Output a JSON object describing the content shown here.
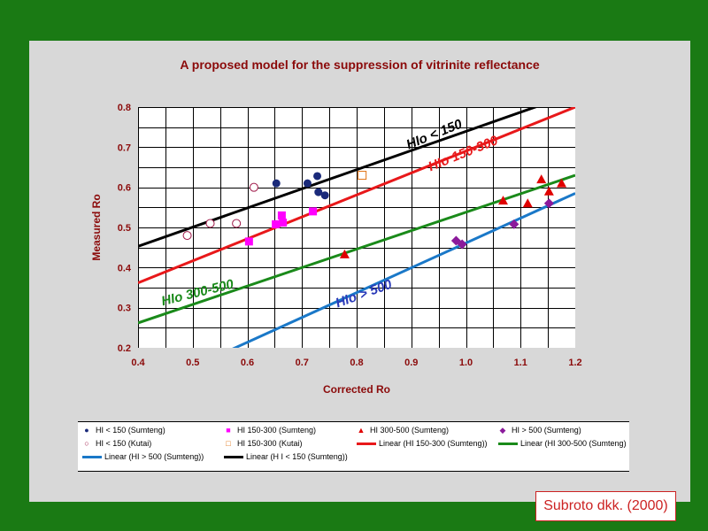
{
  "chart_data": {
    "type": "scatter",
    "title": "A proposed model for the suppression of vitrinite reflectance",
    "xlabel": "Corrected Ro",
    "ylabel": "Measured Ro",
    "xlim": [
      0.4,
      1.2
    ],
    "ylim": [
      0.2,
      0.8
    ],
    "x_ticks": [
      "0.4",
      "0.5",
      "0.6",
      "0.7",
      "0.8",
      "0.9",
      "1.0",
      "1.1",
      "1.2"
    ],
    "y_ticks": [
      "0.2",
      "0.3",
      "0.4",
      "0.5",
      "0.6",
      "0.7",
      "0.8"
    ],
    "grid": true,
    "legend_position": "bottom",
    "series": [
      {
        "name": "HI < 150 (Sumteng)",
        "marker": "circle-filled",
        "color": "#1a2a7a",
        "points": [
          [
            0.653,
            0.61
          ],
          [
            0.71,
            0.61
          ],
          [
            0.728,
            0.628
          ],
          [
            0.73,
            0.588
          ],
          [
            0.742,
            0.58
          ]
        ]
      },
      {
        "name": "HI 150-300 (Sumteng)",
        "marker": "square-filled",
        "color": "#ff00ff",
        "points": [
          [
            0.603,
            0.465
          ],
          [
            0.652,
            0.508
          ],
          [
            0.663,
            0.53
          ],
          [
            0.665,
            0.512
          ],
          [
            0.72,
            0.54
          ]
        ]
      },
      {
        "name": "HI 300-500 (Sumteng)",
        "marker": "triangle-filled",
        "color": "#e00000",
        "points": [
          [
            0.778,
            0.433
          ],
          [
            1.068,
            0.567
          ],
          [
            1.113,
            0.56
          ],
          [
            1.138,
            0.62
          ],
          [
            1.152,
            0.59
          ],
          [
            1.175,
            0.61
          ]
        ]
      },
      {
        "name": "HI > 500 (Sumteng)",
        "marker": "diamond-filled",
        "color": "#8b1a9b",
        "points": [
          [
            0.982,
            0.467
          ],
          [
            0.993,
            0.458
          ],
          [
            1.088,
            0.508
          ],
          [
            1.152,
            0.56
          ]
        ]
      },
      {
        "name": "HI < 150 (Kutai)",
        "marker": "circle-open",
        "color": "#a01a4a",
        "points": [
          [
            0.49,
            0.48
          ],
          [
            0.532,
            0.51
          ],
          [
            0.58,
            0.51
          ],
          [
            0.612,
            0.6
          ]
        ]
      },
      {
        "name": "HI 150-300  (Kutai)",
        "marker": "square-open",
        "color": "#e07010",
        "points": [
          [
            0.81,
            0.63
          ]
        ]
      }
    ],
    "trendlines": [
      {
        "name": "Linear (HI 150-300 (Sumteng))",
        "color": "#e8181a",
        "from": [
          0.4,
          0.362
        ],
        "to": [
          1.2,
          0.8
        ]
      },
      {
        "name": "Linear (HI 300-500 (Sumteng)",
        "color": "#1a8a1a",
        "from": [
          0.4,
          0.262
        ],
        "to": [
          1.2,
          0.63
        ]
      },
      {
        "name": "Linear (HI > 500 (Sumteng))",
        "color": "#1a78c8",
        "from": [
          0.4,
          0.09
        ],
        "to": [
          1.2,
          0.585
        ]
      },
      {
        "name": "Linear (H I < 150 (Sumteng))",
        "color": "#000000",
        "from": [
          0.4,
          0.453
        ],
        "to": [
          1.2,
          0.835
        ]
      }
    ],
    "annotations": [
      {
        "text": "HIo < 150",
        "color": "#000000",
        "x": 0.895,
        "y": 0.695,
        "angle": -22
      },
      {
        "text": "HIo  150-300",
        "color": "#e8181a",
        "x": 0.935,
        "y": 0.64,
        "angle": -22
      },
      {
        "text": "HIo  300-500",
        "color": "#1a8a1a",
        "x": 0.445,
        "y": 0.305,
        "angle": -14
      },
      {
        "text": "HIo > 500",
        "color": "#2a3ab8",
        "x": 0.765,
        "y": 0.3,
        "angle": -20
      }
    ]
  },
  "legend_rows": [
    [
      {
        "label": "HI < 150 (Sumteng)",
        "kind": "marker",
        "glyph": "●",
        "color": "#1a2a7a"
      },
      {
        "label": "HI 150-300 (Sumteng)",
        "kind": "marker",
        "glyph": "■",
        "color": "#ff00ff"
      },
      {
        "label": "HI 300-500 (Sumteng)",
        "kind": "marker",
        "glyph": "▲",
        "color": "#e00000"
      },
      {
        "label": "HI > 500 (Sumteng)",
        "kind": "marker",
        "glyph": "◆",
        "color": "#8b1a9b"
      }
    ],
    [
      {
        "label": "HI < 150 (Kutai)",
        "kind": "marker",
        "glyph": "○",
        "color": "#a01a4a"
      },
      {
        "label": "HI 150-300  (Kutai)",
        "kind": "marker",
        "glyph": "□",
        "color": "#e07010"
      },
      {
        "label": "Linear (HI 150-300 (Sumteng))",
        "kind": "line",
        "color": "#e8181a"
      },
      {
        "label": "Linear (HI 300-500 (Sumteng)",
        "kind": "line",
        "color": "#1a8a1a"
      }
    ],
    [
      {
        "label": "Linear (HI > 500 (Sumteng))",
        "kind": "line",
        "color": "#1a78c8"
      },
      {
        "label": "Linear (H I < 150 (Sumteng))",
        "kind": "line",
        "color": "#000000"
      }
    ]
  ],
  "source_caption": "Subroto dkk. (2000)"
}
